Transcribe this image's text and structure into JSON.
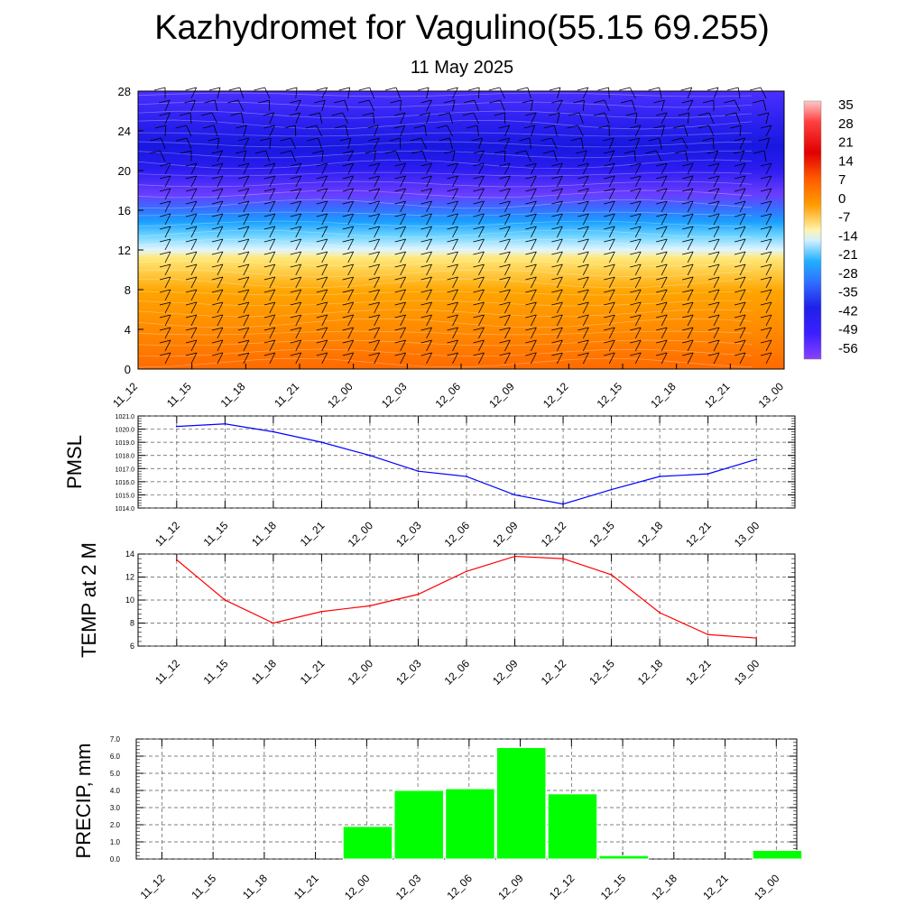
{
  "title": "Kazhydromet for Vagulino(55.15 69.255)",
  "subtitle": "11 May 2025",
  "colors": {
    "pmsl_line": "#0000ff",
    "temp_line": "#ff0000",
    "precip_bar": "#00ff00"
  },
  "time_labels": [
    "11_12",
    "11_15",
    "11_18",
    "11_21",
    "12_00",
    "12_03",
    "12_06",
    "12_09",
    "12_12",
    "12_15",
    "12_18",
    "12_21",
    "13_00"
  ],
  "chart_data": [
    {
      "type": "heatmap",
      "title": "",
      "ylim": [
        0,
        28
      ],
      "y_ticks": [
        "0",
        "4",
        "8",
        "12",
        "16",
        "20",
        "24",
        "28"
      ],
      "x_ticks": [
        "11_12",
        "11_15",
        "11_18",
        "11_21",
        "12_00",
        "12_03",
        "12_06",
        "12_09",
        "12_12",
        "12_15",
        "12_18",
        "12_21",
        "13_00"
      ],
      "colorbar_labels": [
        "35",
        "28",
        "21",
        "14",
        "7",
        "0",
        "-7",
        "-14",
        "-21",
        "-28",
        "-35",
        "-42",
        "-49",
        "-56"
      ],
      "overlay": "wind barbs"
    },
    {
      "type": "line",
      "ylabel": "PMSL",
      "ylim": [
        1014.0,
        1021.0
      ],
      "y_ticks": [
        "1014.0",
        "1015.0",
        "1016.0",
        "1017.0",
        "1018.0",
        "1019.0",
        "1020.0",
        "1021.0"
      ],
      "x": [
        "11_12",
        "11_15",
        "11_18",
        "11_21",
        "12_00",
        "12_03",
        "12_06",
        "12_09",
        "12_12",
        "12_15",
        "12_18",
        "12_21",
        "13_00"
      ],
      "values": [
        1020.2,
        1020.4,
        1019.8,
        1019.0,
        1018.0,
        1016.8,
        1016.4,
        1015.0,
        1014.3,
        1015.4,
        1016.4,
        1016.6,
        1017.7
      ]
    },
    {
      "type": "line",
      "ylabel": "TEMP at 2 M",
      "ylim": [
        6,
        14
      ],
      "y_ticks": [
        "6",
        "8",
        "10",
        "12",
        "14"
      ],
      "x": [
        "11_12",
        "11_15",
        "11_18",
        "11_21",
        "12_00",
        "12_03",
        "12_06",
        "12_09",
        "12_12",
        "12_15",
        "12_18",
        "12_21",
        "13_00"
      ],
      "values": [
        13.5,
        10.0,
        8.0,
        9.0,
        9.5,
        10.5,
        12.5,
        13.8,
        13.6,
        12.2,
        8.9,
        7.0,
        6.7
      ]
    },
    {
      "type": "bar",
      "ylabel": "PRECIP, mm",
      "ylim": [
        0.0,
        7.0
      ],
      "y_ticks": [
        "0.0",
        "1.0",
        "2.0",
        "3.0",
        "4.0",
        "5.0",
        "6.0",
        "7.0"
      ],
      "categories": [
        "11_12",
        "11_15",
        "11_18",
        "11_21",
        "12_00",
        "12_03",
        "12_06",
        "12_09",
        "12_12",
        "12_15",
        "12_18",
        "12_21",
        "13_00"
      ],
      "values": [
        0,
        0,
        0,
        0,
        1.9,
        4.0,
        4.1,
        6.5,
        3.8,
        0.2,
        0,
        0,
        0.5
      ]
    }
  ]
}
